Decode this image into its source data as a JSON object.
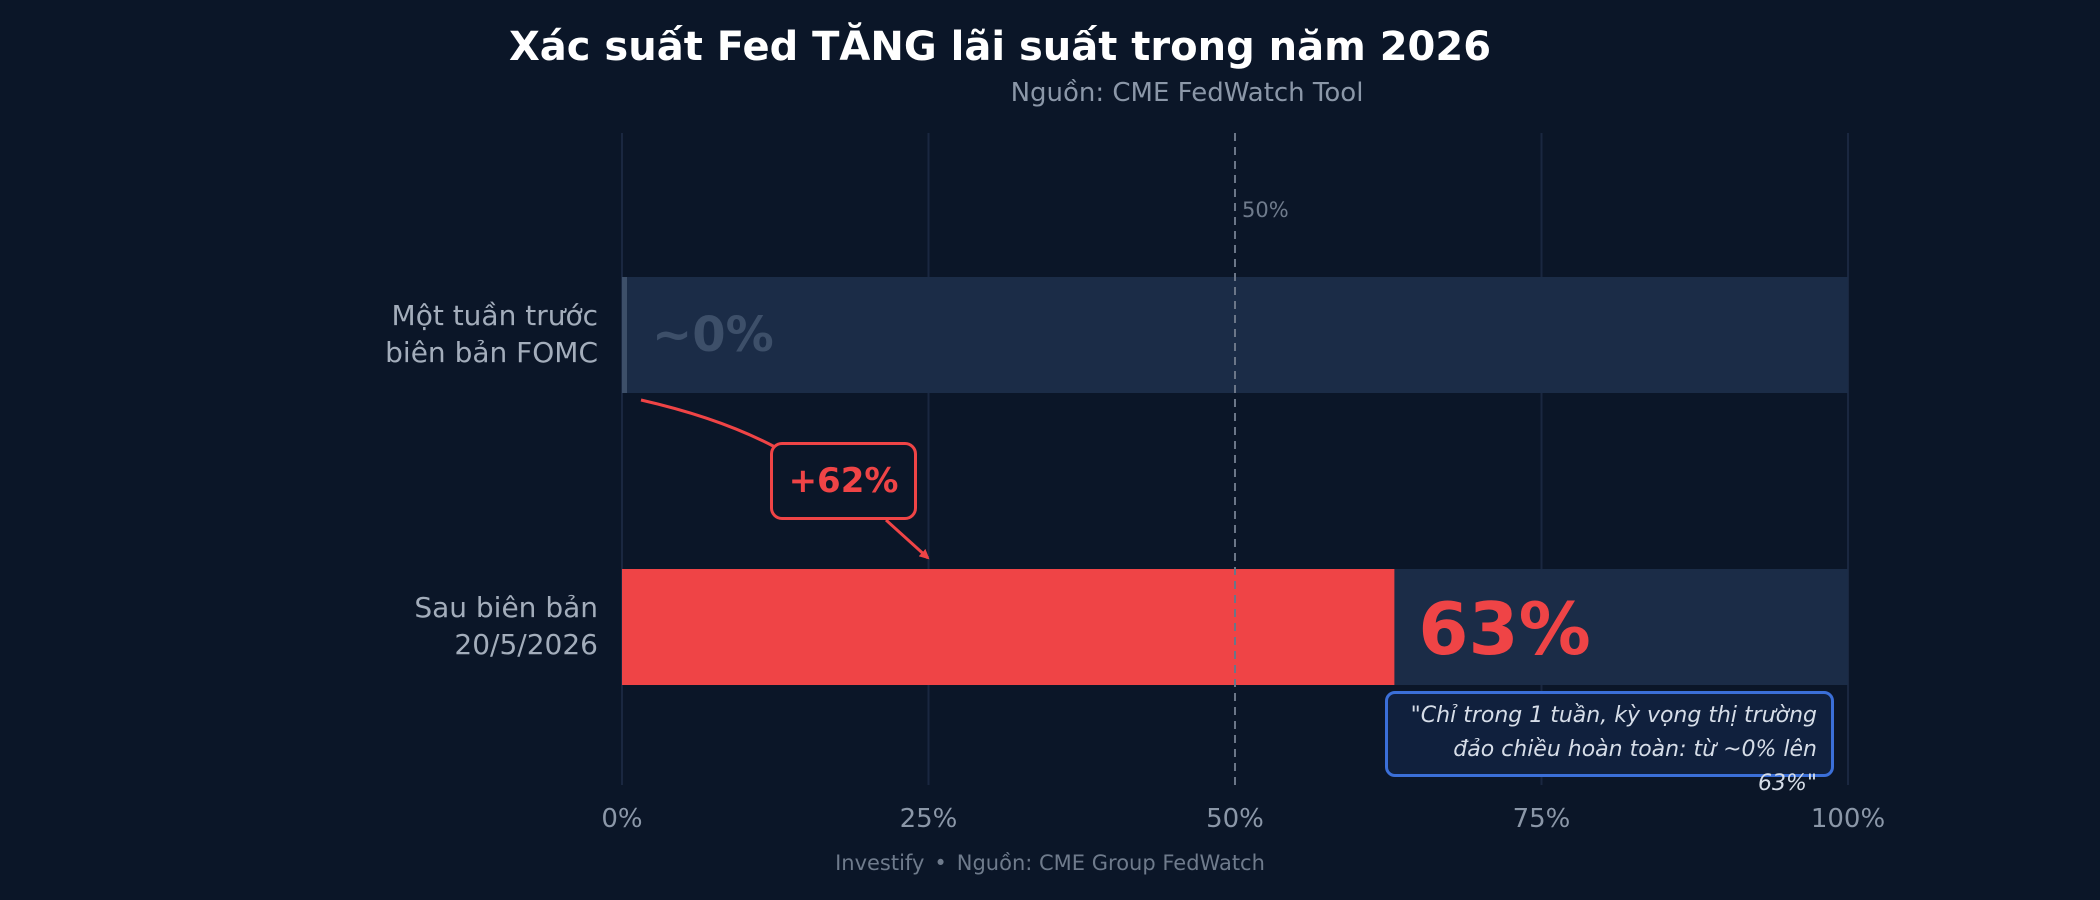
{
  "chart_data": {
    "type": "bar",
    "orientation": "horizontal",
    "title": "Xác suất Fed TĂNG lãi suất trong năm 2026",
    "subtitle": "Nguồn: CME FedWatch Tool",
    "categories": [
      "Một tuần trước\nbiên bản FOMC",
      "Sau biên bản\n20/5/2026"
    ],
    "values": [
      0,
      63
    ],
    "value_labels": [
      "~0%",
      "63%"
    ],
    "xlim": [
      0,
      100
    ],
    "x_ticks": [
      "0%",
      "25%",
      "50%",
      "75%",
      "100%"
    ],
    "x_tick_values": [
      0,
      25,
      50,
      75,
      100
    ],
    "reference_line": {
      "value": 50,
      "label": "50%"
    },
    "delta_annotation": "+62%",
    "quote": [
      "\"Chỉ trong 1 tuần, kỳ vọng thị trường",
      "đảo chiều hoàn toàn: từ ~0% lên 63%\""
    ],
    "grid": "vertical",
    "footer": {
      "brand": "Investify",
      "separator": "•",
      "source": "Nguồn: CME Group FedWatch"
    },
    "colors": {
      "background": "#0b1628",
      "track": "#1b2c47",
      "highlight": "#ef4446",
      "muted_label": "#3d4f69",
      "quote_border": "#3b6fd8"
    }
  }
}
